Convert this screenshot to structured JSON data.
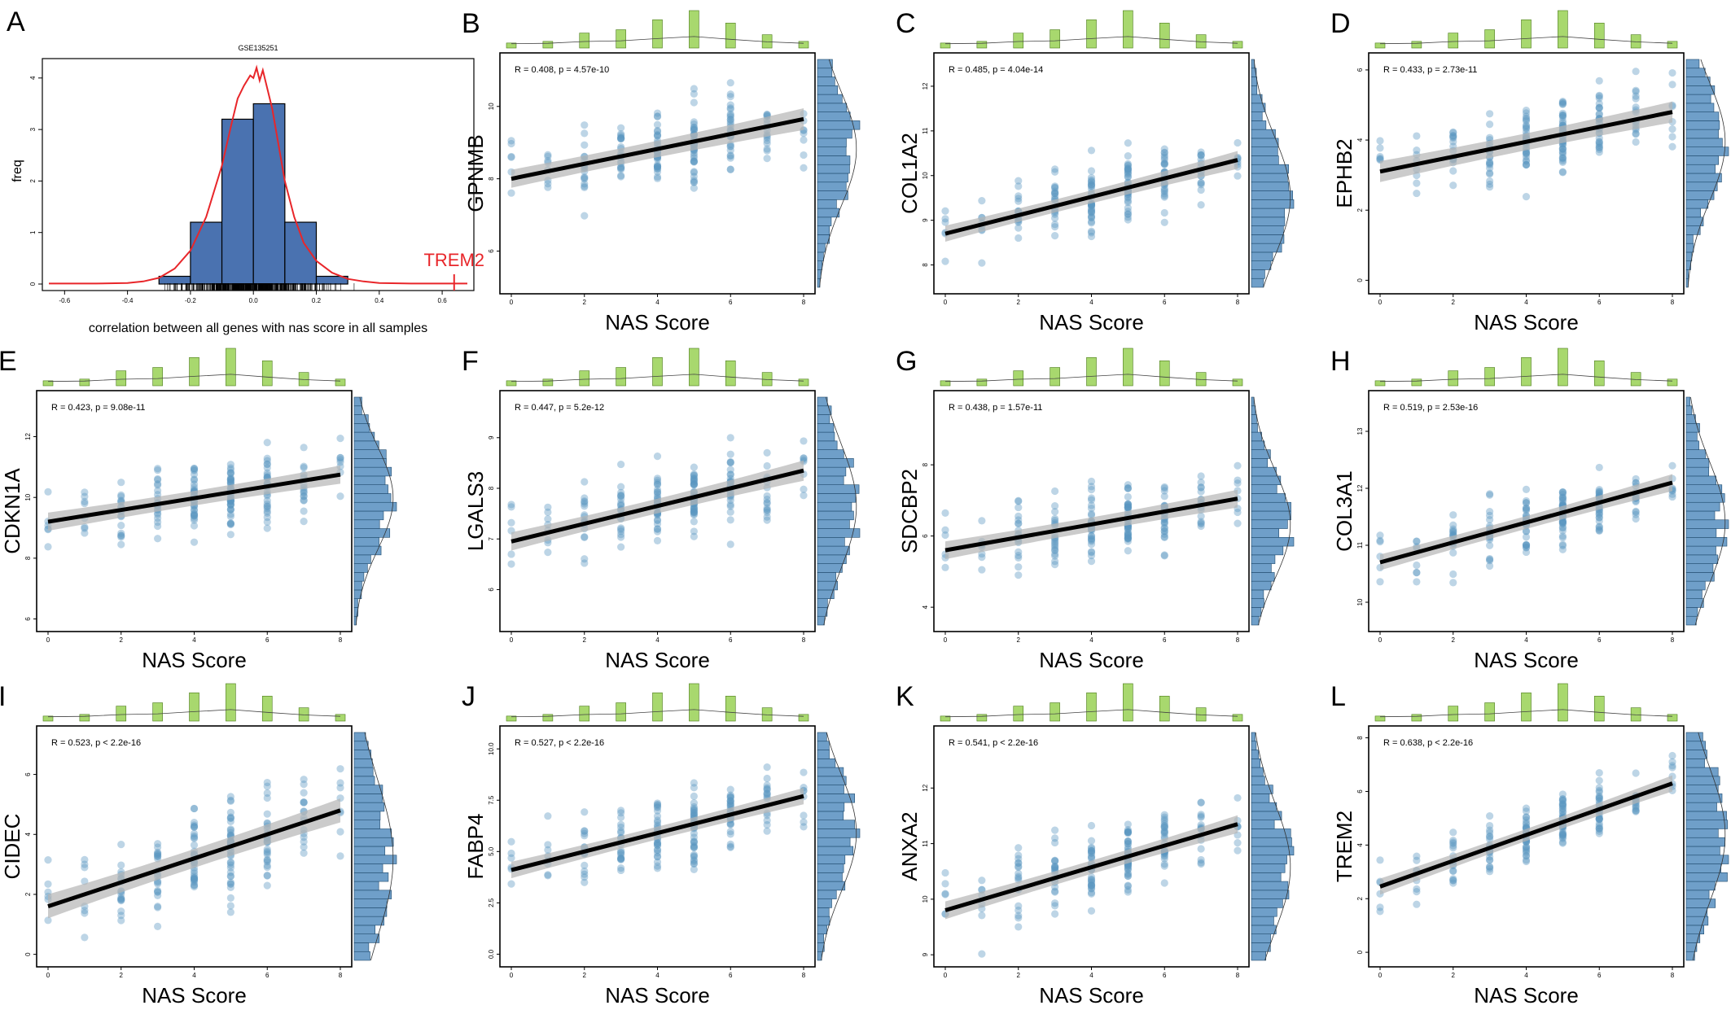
{
  "colors": {
    "point": "#5b95c0",
    "hist": "#6f9fc9",
    "hist_edge": "#1f4a6d",
    "top_bar": "#a8d86e",
    "top_bar_edge": "#4b7a1a",
    "band": "#b5b5b5",
    "fit": "#000000",
    "hist_a": "#4a72b0",
    "density_a": "#e8262a"
  },
  "chart_data": [
    {
      "panel": "A",
      "type": "histogram",
      "title": "GSE135251",
      "xlabel": "correlation between all genes with nas score in all samples",
      "ylabel": "freq",
      "xlim": [
        -0.65,
        0.68
      ],
      "ylim": [
        0,
        4.25
      ],
      "xticks": [
        -0.6,
        -0.4,
        -0.2,
        0.0,
        0.2,
        0.4,
        0.6
      ],
      "xtick_labels": [
        "-0.6",
        "-0.4",
        "-0.2",
        "0.0",
        "0.2",
        "0.4",
        "0.6"
      ],
      "yticks": [
        0,
        1,
        2,
        3,
        4
      ],
      "ytick_labels": [
        "0",
        "1",
        "2",
        "3",
        "4"
      ],
      "bins": [
        {
          "x0": -0.3,
          "x1": -0.2,
          "freq": 0.15
        },
        {
          "x0": -0.2,
          "x1": -0.1,
          "freq": 1.2
        },
        {
          "x0": -0.1,
          "x1": 0.0,
          "freq": 3.2
        },
        {
          "x0": 0.0,
          "x1": 0.1,
          "freq": 3.5
        },
        {
          "x0": 0.1,
          "x1": 0.2,
          "freq": 1.2
        },
        {
          "x0": 0.2,
          "x1": 0.3,
          "freq": 0.15
        }
      ],
      "density": [
        [
          -0.65,
          0.01
        ],
        [
          -0.5,
          0.01
        ],
        [
          -0.4,
          0.02
        ],
        [
          -0.35,
          0.05
        ],
        [
          -0.3,
          0.12
        ],
        [
          -0.25,
          0.3
        ],
        [
          -0.2,
          0.65
        ],
        [
          -0.15,
          1.3
        ],
        [
          -0.1,
          2.3
        ],
        [
          -0.07,
          3.1
        ],
        [
          -0.05,
          3.6
        ],
        [
          -0.03,
          3.85
        ],
        [
          -0.01,
          4.05
        ],
        [
          0.0,
          4.0
        ],
        [
          0.01,
          4.2
        ],
        [
          0.02,
          3.95
        ],
        [
          0.03,
          4.15
        ],
        [
          0.04,
          3.9
        ],
        [
          0.06,
          3.4
        ],
        [
          0.08,
          2.7
        ],
        [
          0.1,
          2.0
        ],
        [
          0.13,
          1.3
        ],
        [
          0.16,
          0.8
        ],
        [
          0.2,
          0.45
        ],
        [
          0.25,
          0.22
        ],
        [
          0.3,
          0.1
        ],
        [
          0.35,
          0.05
        ],
        [
          0.4,
          0.02
        ],
        [
          0.5,
          0.01
        ],
        [
          0.68,
          0.01
        ]
      ],
      "annotation": "TREM2",
      "annotation_x": 0.638
    },
    {
      "panel": "B",
      "gene": "GPNMB",
      "stat": "R = 0.408, p = 4.57e-10",
      "xlabel": "NAS Score",
      "ylim": [
        5,
        11.3
      ],
      "yticks": [
        6,
        8,
        10
      ],
      "ytick_labels": [
        "6",
        "8",
        "10"
      ],
      "fit": [
        8.0,
        9.65
      ],
      "band": [
        0.25,
        0.18,
        0.3
      ],
      "spread": 0.75,
      "xticks": [
        0,
        2,
        4,
        6,
        8
      ],
      "xtick_labels": [
        "0",
        "2",
        "4",
        "6",
        "8"
      ]
    },
    {
      "panel": "C",
      "gene": "COL1A2",
      "stat": "R = 0.485, p = 4.04e-14",
      "xlabel": "NAS Score",
      "ylim": [
        7.5,
        12.6
      ],
      "yticks": [
        8,
        9,
        10,
        11,
        12
      ],
      "ytick_labels": [
        "8",
        "9",
        "10",
        "11",
        "12"
      ],
      "fit": [
        8.7,
        10.35
      ],
      "band": [
        0.18,
        0.1,
        0.2
      ],
      "spread": 0.55,
      "xticks": [
        0,
        2,
        4,
        6,
        8
      ],
      "xtick_labels": [
        "0",
        "2",
        "4",
        "6",
        "8"
      ]
    },
    {
      "panel": "D",
      "gene": "EPHB2",
      "stat": "R = 0.433, p = 2.73e-11",
      "xlabel": "NAS Score",
      "ylim": [
        -0.2,
        6.3
      ],
      "yticks": [
        0,
        2,
        4,
        6
      ],
      "ytick_labels": [
        "0",
        "2",
        "4",
        "6"
      ],
      "fit": [
        3.1,
        4.8
      ],
      "band": [
        0.3,
        0.18,
        0.3
      ],
      "spread": 0.8,
      "xticks": [
        0,
        2,
        4,
        6,
        8
      ],
      "xtick_labels": [
        "0",
        "2",
        "4",
        "6",
        "8"
      ]
    },
    {
      "panel": "E",
      "gene": "CDKN1A",
      "stat": "R = 0.423, p = 9.08e-11",
      "xlabel": "NAS Score",
      "ylim": [
        5.8,
        13.3
      ],
      "yticks": [
        6,
        8,
        10,
        12
      ],
      "ytick_labels": [
        "6",
        "8",
        "10",
        "12"
      ],
      "fit": [
        9.2,
        10.75
      ],
      "band": [
        0.3,
        0.18,
        0.3
      ],
      "spread": 0.85,
      "xticks": [
        0,
        2,
        4,
        6,
        8
      ],
      "xtick_labels": [
        "0",
        "2",
        "4",
        "6",
        "8"
      ]
    },
    {
      "panel": "F",
      "gene": "LGALS3",
      "stat": "R = 0.447, p = 5.2e-12",
      "xlabel": "NAS Score",
      "ylim": [
        5.3,
        9.8
      ],
      "yticks": [
        6,
        7,
        8,
        9
      ],
      "ytick_labels": [
        "6",
        "7",
        "8",
        "9"
      ],
      "fit": [
        6.95,
        8.35
      ],
      "band": [
        0.18,
        0.1,
        0.2
      ],
      "spread": 0.55,
      "xticks": [
        0,
        2,
        4,
        6,
        8
      ],
      "xtick_labels": [
        "0",
        "2",
        "4",
        "6",
        "8"
      ]
    },
    {
      "panel": "G",
      "gene": "SDCBP2",
      "stat": "R = 0.438, p = 1.57e-11",
      "xlabel": "NAS Score",
      "ylim": [
        3.5,
        9.9
      ],
      "yticks": [
        4,
        6,
        8
      ],
      "ytick_labels": [
        "4",
        "6",
        "8"
      ],
      "fit": [
        5.6,
        7.05
      ],
      "band": [
        0.25,
        0.15,
        0.25
      ],
      "spread": 0.75,
      "xticks": [
        0,
        2,
        4,
        6,
        8
      ],
      "xtick_labels": [
        "0",
        "2",
        "4",
        "6",
        "8"
      ]
    },
    {
      "panel": "H",
      "gene": "COL3A1",
      "stat": "R = 0.519, p = 2.53e-16",
      "xlabel": "NAS Score",
      "ylim": [
        9.6,
        13.6
      ],
      "yticks": [
        10,
        11,
        12,
        13
      ],
      "ytick_labels": [
        "10",
        "11",
        "12",
        "13"
      ],
      "fit": [
        10.7,
        12.1
      ],
      "band": [
        0.14,
        0.08,
        0.15
      ],
      "spread": 0.42,
      "xticks": [
        0,
        2,
        4,
        6,
        8
      ],
      "xtick_labels": [
        "0",
        "2",
        "4",
        "6",
        "8"
      ]
    },
    {
      "panel": "I",
      "gene": "CIDEC",
      "stat": "R = 0.523, p < 2.2e-16",
      "xlabel": "NAS Score",
      "ylim": [
        -0.2,
        7.4
      ],
      "yticks": [
        0,
        2,
        4,
        6
      ],
      "ytick_labels": [
        "0",
        "2",
        "4",
        "6"
      ],
      "fit": [
        1.6,
        4.8
      ],
      "band": [
        0.4,
        0.22,
        0.4
      ],
      "spread": 1.1,
      "xticks": [
        0,
        2,
        4,
        6,
        8
      ],
      "xtick_labels": [
        "0",
        "2",
        "4",
        "6",
        "8"
      ]
    },
    {
      "panel": "J",
      "gene": "FABP4",
      "stat": "R = 0.527, p < 2.2e-16",
      "xlabel": "NAS Score",
      "ylim": [
        -0.3,
        10.8
      ],
      "yticks": [
        0.0,
        2.5,
        5.0,
        7.5,
        10.0
      ],
      "ytick_labels": [
        "0.0",
        "2.5",
        "5.0",
        "7.5",
        "10.0"
      ],
      "fit": [
        4.1,
        7.7
      ],
      "band": [
        0.4,
        0.22,
        0.4
      ],
      "spread": 1.2,
      "xticks": [
        0,
        2,
        4,
        6,
        8
      ],
      "xtick_labels": [
        "0",
        "2",
        "4",
        "6",
        "8"
      ]
    },
    {
      "panel": "K",
      "gene": "ANXA2",
      "stat": "R = 0.541, p < 2.2e-16",
      "xlabel": "NAS Score",
      "ylim": [
        8.9,
        13.0
      ],
      "yticks": [
        9,
        10,
        11,
        12
      ],
      "ytick_labels": [
        "9",
        "10",
        "11",
        "12"
      ],
      "fit": [
        9.8,
        11.35
      ],
      "band": [
        0.16,
        0.08,
        0.16
      ],
      "spread": 0.45,
      "xticks": [
        0,
        2,
        4,
        6,
        8
      ],
      "xtick_labels": [
        "0",
        "2",
        "4",
        "6",
        "8"
      ]
    },
    {
      "panel": "L",
      "gene": "TREM2",
      "stat": "R = 0.638, p < 2.2e-16",
      "xlabel": "NAS Score",
      "ylim": [
        -0.3,
        8.2
      ],
      "yticks": [
        0,
        2,
        4,
        6,
        8
      ],
      "ytick_labels": [
        "0",
        "2",
        "4",
        "6",
        "8"
      ],
      "fit": [
        2.45,
        6.3
      ],
      "band": [
        0.3,
        0.15,
        0.3
      ],
      "spread": 0.85,
      "xticks": [
        0,
        2,
        4,
        6,
        8
      ],
      "xtick_labels": [
        "0",
        "2",
        "4",
        "6",
        "8"
      ]
    }
  ],
  "nas_counts": [
    6,
    8,
    18,
    22,
    34,
    45,
    30,
    16,
    8
  ]
}
